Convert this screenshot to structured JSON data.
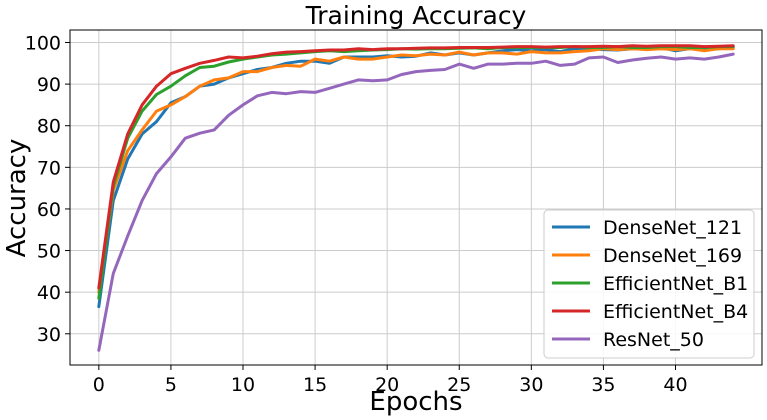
{
  "chart_data": {
    "type": "line",
    "title": "Training Accuracy",
    "xlabel": "Epochs",
    "ylabel": "Accuracy",
    "xlim": [
      -2,
      46
    ],
    "ylim": [
      22.5,
      103
    ],
    "xticks": [
      0,
      5,
      10,
      15,
      20,
      25,
      30,
      35,
      40
    ],
    "yticks": [
      30,
      40,
      50,
      60,
      70,
      80,
      90,
      100
    ],
    "grid": true,
    "legend_position": "lower-right",
    "x": [
      0,
      1,
      2,
      3,
      4,
      5,
      6,
      7,
      8,
      9,
      10,
      11,
      12,
      13,
      14,
      15,
      16,
      17,
      18,
      19,
      20,
      21,
      22,
      23,
      24,
      25,
      26,
      27,
      28,
      29,
      30,
      31,
      32,
      33,
      34,
      35,
      36,
      37,
      38,
      39,
      40,
      41,
      42,
      43,
      44
    ],
    "series": [
      {
        "name": "DenseNet_121",
        "color": "#1f77b4",
        "values": [
          36.5,
          62,
          72,
          78,
          81,
          85.5,
          87,
          89.5,
          90,
          91.5,
          92.5,
          93.5,
          94,
          95,
          95.5,
          95.5,
          95,
          96.5,
          96.5,
          96.5,
          96.8,
          96.5,
          96.7,
          97.5,
          97,
          97.5,
          97,
          97.5,
          98,
          98.3,
          98,
          98.3,
          97.8,
          98.5,
          98.5,
          98.3,
          98.2,
          98.5,
          98.5,
          98.8,
          98,
          98.5,
          98.3,
          98.5,
          98.8
        ]
      },
      {
        "name": "DenseNet_169",
        "color": "#ff7f0e",
        "values": [
          40,
          64.5,
          74,
          79,
          83.5,
          85,
          87,
          89.5,
          91,
          91.5,
          93,
          93,
          94,
          94.5,
          94.3,
          96,
          95.5,
          96.5,
          96,
          96,
          96.5,
          97,
          96.8,
          97.2,
          97,
          97.7,
          97,
          97.5,
          97.5,
          97.2,
          97.8,
          97.5,
          97.5,
          97.8,
          98,
          98.5,
          98.3,
          98.5,
          98.3,
          98.5,
          98.3,
          98.5,
          98,
          98.5,
          98.5
        ]
      },
      {
        "name": "EfficientNet_B1",
        "color": "#2ca02c",
        "values": [
          38.5,
          65.5,
          77,
          83.5,
          87.5,
          89.5,
          92,
          94,
          94.3,
          95.3,
          96,
          96.5,
          97,
          97.2,
          97.5,
          97.8,
          98,
          97.8,
          98,
          98.2,
          98.3,
          98.5,
          98.4,
          98.5,
          98.5,
          98.6,
          98.7,
          98.5,
          98.8,
          98.8,
          98.8,
          98.8,
          98.8,
          99,
          98.8,
          98.8,
          99,
          98.8,
          98.8,
          99,
          99,
          98.8,
          98.8,
          99,
          99
        ]
      },
      {
        "name": "EfficientNet_B4",
        "color": "#d62728",
        "values": [
          41,
          66.5,
          78,
          85,
          89.5,
          92.5,
          93.8,
          95,
          95.7,
          96.5,
          96.3,
          96.7,
          97.3,
          97.7,
          97.8,
          98,
          98.2,
          98.2,
          98.5,
          98.3,
          98.5,
          98.5,
          98.6,
          98.7,
          98.7,
          98.8,
          98.8,
          98.8,
          98.9,
          99,
          99,
          98.9,
          99,
          99,
          99,
          99.1,
          99,
          99.2,
          99.1,
          99.2,
          99.2,
          99.2,
          99,
          99.1,
          99.2
        ]
      },
      {
        "name": "ResNet_50",
        "color": "#9467bd",
        "values": [
          26,
          44.5,
          53.5,
          62,
          68.5,
          72.5,
          77,
          78.2,
          79,
          82.5,
          85,
          87.2,
          88,
          87.7,
          88.2,
          88,
          89,
          90,
          91,
          90.8,
          91,
          92.3,
          93,
          93.3,
          93.5,
          94.8,
          93.8,
          94.8,
          94.8,
          95,
          95,
          95.5,
          94.5,
          94.8,
          96.3,
          96.5,
          95.2,
          95.8,
          96.2,
          96.5,
          96,
          96.3,
          96,
          96.5,
          97.2
        ]
      }
    ]
  }
}
